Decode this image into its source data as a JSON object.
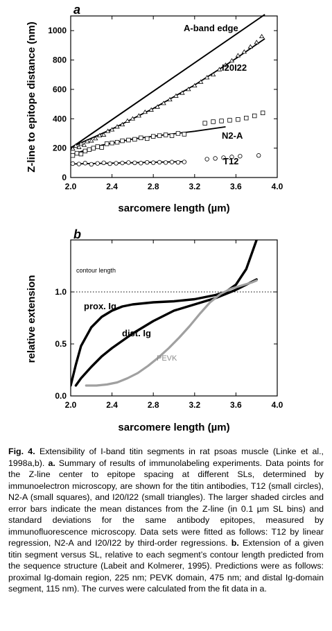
{
  "figure": {
    "panel_a_label": "a",
    "panel_b_label": "b",
    "caption": {
      "title": "Fig. 4.",
      "lead": "Extensibility of I-band titin segments in rat psoas muscle (Linke et al., 1998a,b).",
      "a_label": "a.",
      "a_text": "Summary of results of immunolabeling experiments. Data points for the Z-line center to epitope spacing at different SLs, determined by immunoelectron microscopy, are shown for the titin antibodies, T12 (small circles), N2-A (small squares), and I20/I22 (small triangles). The larger shaded circles and error bars indicate the mean distances from the Z-line (in 0.1 µm SL bins) and standard deviations for the same antibody epitopes, measured by immunofluorescence microscopy. Data sets were fitted as follows: T12 by linear regression, N2-A and I20/I22 by third-order regressions.",
      "b_label": "b.",
      "b_text": "Extension of a given titin segment versus SL, relative to each segment’s contour length predicted from the sequence structure (Labeit and Kolmerer, 1995). Predictions were as follows: proximal Ig-domain region, 225 nm; PEVK domain, 475 nm; and distal Ig-domain segment, 115 nm). The curves were calculated from the fit data in a."
    }
  },
  "chart_data": [
    {
      "type": "scatter",
      "panel": "a",
      "xlabel": "sarcomere length (µm)",
      "ylabel": "Z-line to epitope distance (nm)",
      "xlim": [
        2.0,
        4.0
      ],
      "ylim": [
        0,
        1100
      ],
      "xticks": [
        2.0,
        2.4,
        2.8,
        3.2,
        3.6,
        4.0
      ],
      "xtick_labels": [
        "2.0",
        "2.4",
        "2.8",
        "3.2",
        "3.6",
        "4.0"
      ],
      "yticks": [
        0,
        200,
        400,
        600,
        800,
        1000
      ],
      "ytick_labels": [
        "0",
        "200",
        "400",
        "600",
        "800",
        "1000"
      ],
      "annotations": [
        "A-band edge",
        "I20I22",
        "N2-A",
        "T12"
      ],
      "lines": [
        {
          "name": "A-band edge",
          "x": [
            2.0,
            3.88
          ],
          "y": [
            200,
            1110
          ]
        },
        {
          "name": "I20I22",
          "x": [
            2.0,
            2.4,
            2.8,
            3.2,
            3.6,
            3.88
          ],
          "y": [
            205,
            330,
            470,
            630,
            810,
            945
          ]
        },
        {
          "name": "N2-A",
          "x": [
            2.0,
            2.3,
            2.6,
            2.9,
            3.2,
            3.5
          ],
          "y": [
            155,
            220,
            262,
            290,
            315,
            345
          ]
        },
        {
          "name": "T12",
          "x": [
            2.0,
            3.1
          ],
          "y": [
            92,
            108
          ]
        }
      ],
      "series": [
        {
          "name": "I20I22",
          "marker": "triangle",
          "x": [
            2.02,
            2.05,
            2.08,
            2.1,
            2.13,
            2.16,
            2.2,
            2.24,
            2.28,
            2.32,
            2.36,
            2.4,
            2.45,
            2.5,
            2.55,
            2.6,
            2.66,
            2.72,
            2.78,
            2.84,
            2.9,
            2.96,
            3.02,
            3.08,
            3.14,
            3.2,
            3.26,
            3.32,
            3.38,
            3.44,
            3.5,
            3.56,
            3.62,
            3.68,
            3.74,
            3.8,
            3.85
          ],
          "y": [
            195,
            215,
            205,
            230,
            220,
            245,
            250,
            265,
            285,
            290,
            315,
            325,
            345,
            360,
            385,
            400,
            420,
            445,
            460,
            480,
            505,
            530,
            555,
            575,
            600,
            625,
            650,
            680,
            700,
            735,
            765,
            795,
            830,
            855,
            890,
            920,
            960
          ]
        },
        {
          "name": "N2-A",
          "marker": "square",
          "x": [
            2.02,
            2.06,
            2.1,
            2.14,
            2.18,
            2.22,
            2.26,
            2.3,
            2.35,
            2.4,
            2.45,
            2.5,
            2.56,
            2.62,
            2.68,
            2.74,
            2.8,
            2.86,
            2.92,
            2.98,
            3.04,
            3.1,
            3.3,
            3.38,
            3.46,
            3.54,
            3.62,
            3.7,
            3.78,
            3.86
          ],
          "y": [
            150,
            165,
            160,
            180,
            190,
            200,
            210,
            205,
            230,
            235,
            240,
            250,
            255,
            260,
            270,
            265,
            280,
            285,
            290,
            285,
            300,
            295,
            370,
            380,
            385,
            390,
            395,
            405,
            420,
            440
          ]
        },
        {
          "name": "T12",
          "marker": "circle",
          "x": [
            2.02,
            2.08,
            2.14,
            2.2,
            2.26,
            2.32,
            2.38,
            2.44,
            2.5,
            2.56,
            2.62,
            2.68,
            2.74,
            2.8,
            2.86,
            2.92,
            2.98,
            3.04,
            3.1,
            3.32,
            3.4,
            3.48,
            3.56,
            3.64,
            3.82
          ],
          "y": [
            95,
            92,
            98,
            90,
            96,
            100,
            94,
            97,
            99,
            102,
            100,
            98,
            103,
            101,
            104,
            102,
            105,
            103,
            106,
            125,
            130,
            135,
            140,
            145,
            150
          ]
        }
      ]
    },
    {
      "type": "line",
      "panel": "b",
      "xlabel": "sarcomere length (µm)",
      "ylabel": "relative extension",
      "xlim": [
        2.0,
        4.0
      ],
      "ylim": [
        0.0,
        1.5
      ],
      "xticks": [
        2.0,
        2.4,
        2.8,
        3.2,
        3.6,
        4.0
      ],
      "xtick_labels": [
        "2.0",
        "2.4",
        "2.8",
        "3.2",
        "3.6",
        "4.0"
      ],
      "yticks": [
        0.0,
        0.5,
        1.0
      ],
      "ytick_labels": [
        "0.0",
        "0.5",
        "1.0"
      ],
      "reference_line": {
        "label": "contour length",
        "y": 1.0
      },
      "series": [
        {
          "name": "prox. Ig",
          "color": "#000000",
          "x": [
            2.0,
            2.05,
            2.1,
            2.2,
            2.3,
            2.4,
            2.5,
            2.6,
            2.8,
            3.0,
            3.2,
            3.4,
            3.5,
            3.6,
            3.7,
            3.8
          ],
          "y": [
            0.1,
            0.3,
            0.48,
            0.66,
            0.76,
            0.82,
            0.86,
            0.88,
            0.9,
            0.91,
            0.93,
            0.97,
            1.0,
            1.07,
            1.22,
            1.5
          ]
        },
        {
          "name": "dist. Ig",
          "color": "#000000",
          "x": [
            2.05,
            2.1,
            2.2,
            2.3,
            2.4,
            2.6,
            2.8,
            3.0,
            3.2,
            3.4,
            3.5,
            3.6,
            3.7,
            3.8
          ],
          "y": [
            0.1,
            0.17,
            0.28,
            0.38,
            0.46,
            0.6,
            0.72,
            0.82,
            0.88,
            0.94,
            0.98,
            1.02,
            1.07,
            1.12
          ]
        },
        {
          "name": "PEVK",
          "color": "#a0a0a0",
          "x": [
            2.15,
            2.25,
            2.35,
            2.45,
            2.55,
            2.65,
            2.75,
            2.85,
            2.95,
            3.05,
            3.15,
            3.25,
            3.35,
            3.45,
            3.55,
            3.65,
            3.75,
            3.8
          ],
          "y": [
            0.1,
            0.1,
            0.11,
            0.13,
            0.17,
            0.22,
            0.29,
            0.37,
            0.46,
            0.56,
            0.67,
            0.79,
            0.9,
            0.98,
            1.03,
            1.06,
            1.09,
            1.11
          ]
        }
      ]
    }
  ]
}
